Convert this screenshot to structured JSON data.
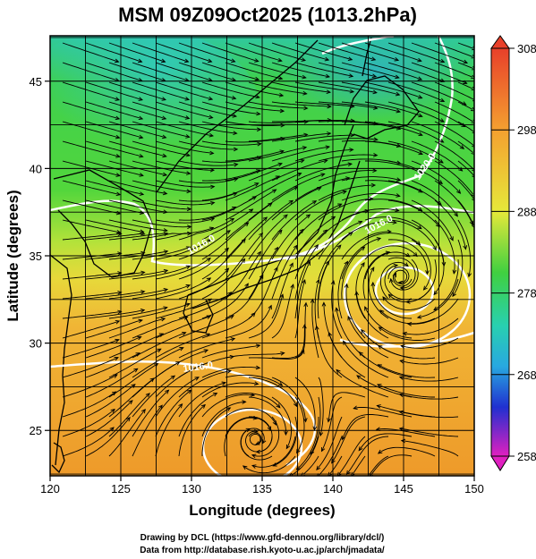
{
  "title": "MSM 09Z09Oct2025 (1013.2hPa)",
  "xlabel": "Longitude (degrees)",
  "ylabel": "Latitude  (degrees)",
  "x_ticks": [
    "120",
    "125",
    "130",
    "135",
    "140",
    "145",
    "150"
  ],
  "y_ticks": [
    "25",
    "30",
    "35",
    "40",
    "45"
  ],
  "x_range": [
    120,
    150
  ],
  "y_range": [
    22.4,
    47.6
  ],
  "colorbar": {
    "ticks": [
      "308",
      "298",
      "288",
      "278",
      "268",
      "258"
    ],
    "range": [
      258,
      308
    ]
  },
  "contour_labels": [
    "1020.0",
    "1016.0",
    "1016.0",
    "1016.0"
  ],
  "credit_line1": "Drawing by DCL (https://www.gfd-dennou.org/library/dcl/)",
  "credit_line2": "Data from http://database.rish.kyoto-u.ac.jp/arch/jmadata/",
  "colors": {
    "north_green": "#3fd24a",
    "mid_yellow": "#e8e83a",
    "south_orange": "#f0a030",
    "contour": "#ffffff",
    "streamline": "#000000"
  },
  "features": {
    "cyclone_east_center": [
      144.8,
      33.8
    ],
    "cyclone_south_center": [
      134.5,
      24.5
    ]
  }
}
